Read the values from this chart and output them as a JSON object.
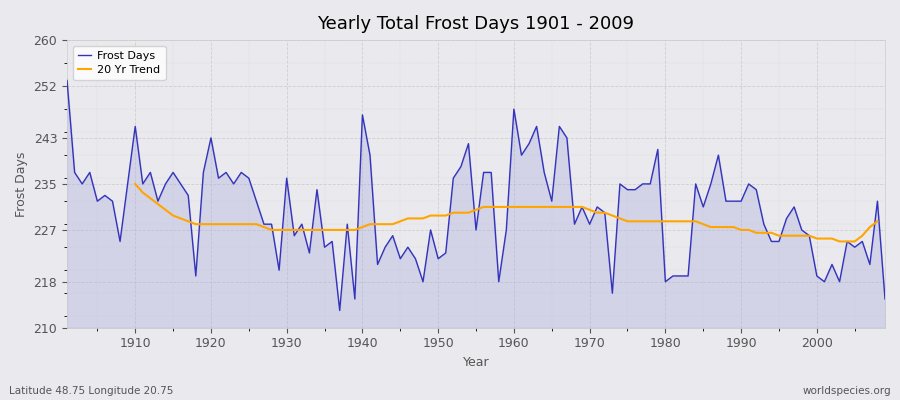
{
  "title": "Yearly Total Frost Days 1901 - 2009",
  "xlabel": "Year",
  "ylabel": "Frost Days",
  "footnote_left": "Latitude 48.75 Longitude 20.75",
  "footnote_right": "worldspecies.org",
  "ylim": [
    210,
    260
  ],
  "yticks": [
    210,
    218,
    227,
    235,
    243,
    252,
    260
  ],
  "xticks": [
    1910,
    1920,
    1930,
    1940,
    1950,
    1960,
    1970,
    1980,
    1990,
    2000
  ],
  "frost_days_color": "#3333BB",
  "frost_fill_color": "#AAAADD",
  "trend_color": "#FFA500",
  "bg_color": "#EAEAEE",
  "plot_bg_color": "#EAEAEE",
  "grid_color": "#CCCCCC",
  "years": [
    1901,
    1902,
    1903,
    1904,
    1905,
    1906,
    1907,
    1908,
    1909,
    1910,
    1911,
    1912,
    1913,
    1914,
    1915,
    1916,
    1917,
    1918,
    1919,
    1920,
    1921,
    1922,
    1923,
    1924,
    1925,
    1926,
    1927,
    1928,
    1929,
    1930,
    1931,
    1932,
    1933,
    1934,
    1935,
    1936,
    1937,
    1938,
    1939,
    1940,
    1941,
    1942,
    1943,
    1944,
    1945,
    1946,
    1947,
    1948,
    1949,
    1950,
    1951,
    1952,
    1953,
    1954,
    1955,
    1956,
    1957,
    1958,
    1959,
    1960,
    1961,
    1962,
    1963,
    1964,
    1965,
    1966,
    1967,
    1968,
    1969,
    1970,
    1971,
    1972,
    1973,
    1974,
    1975,
    1976,
    1977,
    1978,
    1979,
    1980,
    1981,
    1982,
    1983,
    1984,
    1985,
    1986,
    1987,
    1988,
    1989,
    1990,
    1991,
    1992,
    1993,
    1994,
    1995,
    1996,
    1997,
    1998,
    1999,
    2000,
    2001,
    2002,
    2003,
    2004,
    2005,
    2006,
    2007,
    2008,
    2009
  ],
  "frost_days": [
    253,
    237,
    235,
    237,
    232,
    233,
    232,
    225,
    235,
    245,
    235,
    237,
    232,
    235,
    237,
    235,
    233,
    219,
    237,
    243,
    236,
    237,
    235,
    237,
    236,
    232,
    228,
    228,
    220,
    236,
    226,
    228,
    223,
    234,
    224,
    225,
    213,
    228,
    215,
    247,
    240,
    221,
    224,
    226,
    222,
    224,
    222,
    218,
    227,
    222,
    223,
    236,
    238,
    242,
    227,
    237,
    237,
    218,
    227,
    248,
    240,
    242,
    245,
    237,
    232,
    245,
    243,
    228,
    231,
    228,
    231,
    230,
    216,
    235,
    234,
    234,
    235,
    235,
    241,
    218,
    219,
    219,
    219,
    235,
    231,
    235,
    240,
    232,
    232,
    232,
    235,
    234,
    228,
    225,
    225,
    229,
    231,
    227,
    226,
    219,
    218,
    221,
    218,
    225,
    224,
    225,
    221,
    232,
    215
  ],
  "trend_start_year": 1910,
  "trend_values": [
    235.0,
    233.5,
    232.5,
    231.5,
    230.5,
    229.5,
    229.0,
    228.5,
    228.0,
    228.0,
    228.0,
    228.0,
    228.0,
    228.0,
    228.0,
    228.0,
    228.0,
    227.5,
    227.0,
    227.0,
    227.0,
    227.0,
    227.0,
    227.0,
    227.0,
    227.0,
    227.0,
    227.0,
    227.0,
    227.0,
    227.5,
    228.0,
    228.0,
    228.0,
    228.0,
    228.5,
    229.0,
    229.0,
    229.0,
    229.5,
    229.5,
    229.5,
    230.0,
    230.0,
    230.0,
    230.5,
    231.0,
    231.0,
    231.0,
    231.0,
    231.0,
    231.0,
    231.0,
    231.0,
    231.0,
    231.0,
    231.0,
    231.0,
    231.0,
    231.0,
    230.5,
    230.0,
    230.0,
    229.5,
    229.0,
    228.5,
    228.5,
    228.5,
    228.5,
    228.5,
    228.5,
    228.5,
    228.5,
    228.5,
    228.5,
    228.0,
    227.5,
    227.5,
    227.5,
    227.5,
    227.0,
    227.0,
    226.5,
    226.5,
    226.5,
    226.0,
    226.0,
    226.0,
    226.0,
    226.0,
    225.5,
    225.5,
    225.5,
    225.0,
    225.0,
    225.0,
    226.0,
    227.5,
    228.5
  ]
}
